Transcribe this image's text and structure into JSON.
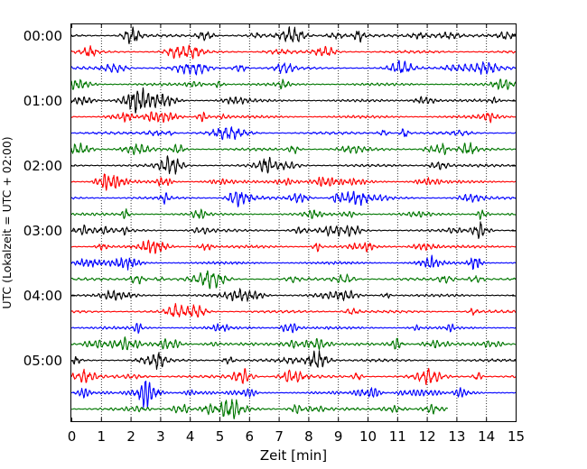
{
  "chart_data": {
    "type": "line",
    "title": "",
    "xlabel": "Zeit  [min]",
    "ylabel": "UTC (Lokalzeit = UTC + 02:00)",
    "xlim": [
      0,
      15
    ],
    "x_ticks": [
      0,
      1,
      2,
      3,
      4,
      5,
      6,
      7,
      8,
      9,
      10,
      11,
      12,
      13,
      14,
      15
    ],
    "y_ticks": [
      {
        "label": "00:00",
        "trace": 0
      },
      {
        "label": "01:00",
        "trace": 4
      },
      {
        "label": "02:00",
        "trace": 8
      },
      {
        "label": "03:00",
        "trace": 12
      },
      {
        "label": "04:00",
        "trace": 16
      },
      {
        "label": "05:00",
        "trace": 20
      }
    ],
    "grid": "vertical-dotted",
    "trace_interval_minutes": 15,
    "color_cycle": [
      "#000000",
      "#ff0000",
      "#0000ff",
      "#007700"
    ],
    "series": [
      {
        "start": "00:00",
        "end_min": 15
      },
      {
        "start": "00:15",
        "end_min": 15
      },
      {
        "start": "00:30",
        "end_min": 15
      },
      {
        "start": "00:45",
        "end_min": 15
      },
      {
        "start": "01:00",
        "end_min": 15
      },
      {
        "start": "01:15",
        "end_min": 15
      },
      {
        "start": "01:30",
        "end_min": 15
      },
      {
        "start": "01:45",
        "end_min": 15
      },
      {
        "start": "02:00",
        "end_min": 15
      },
      {
        "start": "02:15",
        "end_min": 15
      },
      {
        "start": "02:30",
        "end_min": 15
      },
      {
        "start": "02:45",
        "end_min": 15
      },
      {
        "start": "03:00",
        "end_min": 15
      },
      {
        "start": "03:15",
        "end_min": 15
      },
      {
        "start": "03:30",
        "end_min": 15
      },
      {
        "start": "03:45",
        "end_min": 15
      },
      {
        "start": "04:00",
        "end_min": 15
      },
      {
        "start": "04:15",
        "end_min": 15
      },
      {
        "start": "04:30",
        "end_min": 15
      },
      {
        "start": "04:45",
        "end_min": 15
      },
      {
        "start": "05:00",
        "end_min": 15
      },
      {
        "start": "05:15",
        "end_min": 15
      },
      {
        "start": "05:30",
        "end_min": 15
      },
      {
        "start": "05:45",
        "end_min": 12.7
      }
    ]
  }
}
